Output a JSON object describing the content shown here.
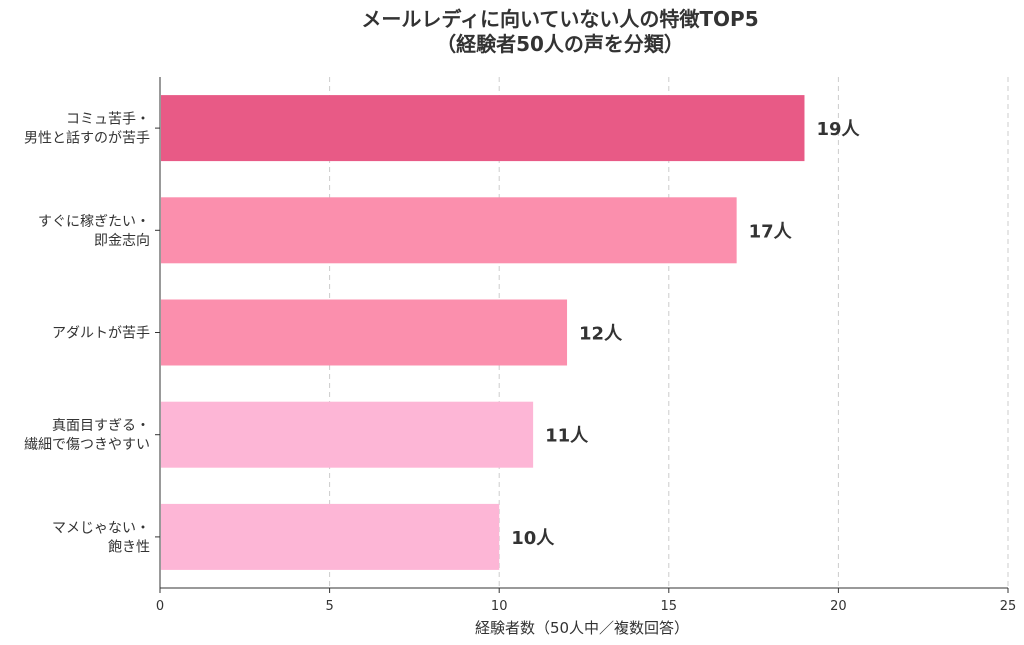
{
  "chart_data": {
    "type": "bar",
    "orientation": "horizontal",
    "title": "メールレディに向いていない人の特徴TOP5",
    "subtitle": "（経験者50人の声を分類）",
    "xlabel": "経験者数（50人中／複数回答）",
    "ylabel": "",
    "xlim": [
      0,
      25
    ],
    "xticks": [
      0,
      5,
      10,
      15,
      20,
      25
    ],
    "grid": "vertical dashed",
    "value_suffix": "人",
    "categories": [
      [
        "コミュ苦手・",
        "男性と話すのが苦手"
      ],
      [
        "すぐに稼ぎたい・",
        "即金志向"
      ],
      [
        "アダルトが苦手"
      ],
      [
        "真面目すぎる・",
        "繊細で傷つきやすい"
      ],
      [
        "マメじゃない・",
        "飽き性"
      ]
    ],
    "values": [
      19,
      17,
      12,
      11,
      10
    ],
    "colors": [
      "#e85a86",
      "#fb8fad",
      "#fb8fad",
      "#fdb6d6",
      "#fdb6d6"
    ],
    "axis_color": "#333333",
    "grid_color": "#cccccc",
    "text_color": "#333333"
  }
}
